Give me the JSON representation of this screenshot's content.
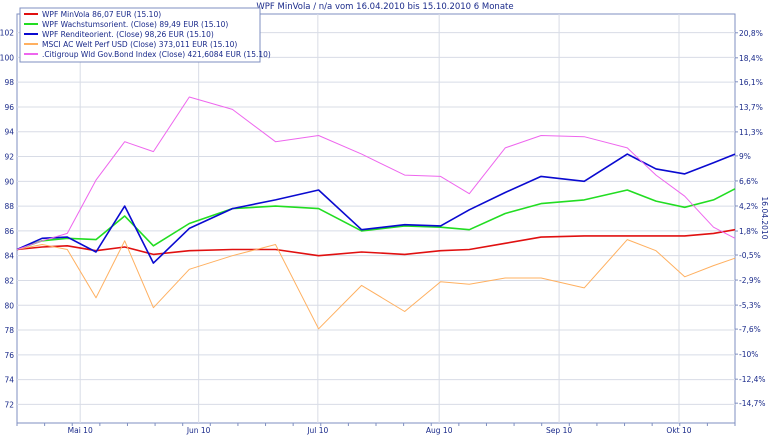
{
  "chart_data": {
    "type": "line",
    "title": "WPF MinVola / n/a vom 16.04.2010 bis 15.10.2010 6 Monate",
    "right_axis_title": "16.04.2010",
    "x_ticks": [
      {
        "label": "Mai 10",
        "t": 0.088
      },
      {
        "label": "Jun 10",
        "t": 0.253
      },
      {
        "label": "Jul 10",
        "t": 0.419
      },
      {
        "label": "Aug 10",
        "t": 0.588
      },
      {
        "label": "Sep 10",
        "t": 0.755
      },
      {
        "label": "Okt 10",
        "t": 0.922
      }
    ],
    "ylim_left": [
      70.5,
      103.5
    ],
    "ylim_right": [
      -16.6,
      22.6
    ],
    "y_left_ticks": [
      72,
      74,
      76,
      78,
      80,
      82,
      84,
      86,
      88,
      90,
      92,
      94,
      96,
      98,
      100,
      102
    ],
    "y_right_ticks": [
      {
        "label": "-14,7%",
        "v": -14.7
      },
      {
        "label": "-12,4%",
        "v": -12.4
      },
      {
        "label": "-10%",
        "v": -10.0
      },
      {
        "label": "-7,6%",
        "v": -7.6
      },
      {
        "label": "-5,3%",
        "v": -5.3
      },
      {
        "label": "-2,9%",
        "v": -2.9
      },
      {
        "label": "-0,5%",
        "v": -0.5
      },
      {
        "label": "1,8%",
        "v": 1.8
      },
      {
        "label": "4,2%",
        "v": 4.2
      },
      {
        "label": "6,6%",
        "v": 6.6
      },
      {
        "label": "9%",
        "v": 9.0
      },
      {
        "label": "11,3%",
        "v": 11.3
      },
      {
        "label": "13,7%",
        "v": 13.7
      },
      {
        "label": "16,1%",
        "v": 16.1
      },
      {
        "label": "18,4%",
        "v": 18.4
      },
      {
        "label": "20,8%",
        "v": 20.8
      }
    ],
    "grid": true,
    "legend_position": "top-left",
    "series": [
      {
        "name": "WPF MinVola 86,07 EUR (15.10)",
        "color": "#e01010",
        "x": [
          0,
          0.035,
          0.07,
          0.11,
          0.15,
          0.19,
          0.24,
          0.3,
          0.36,
          0.42,
          0.48,
          0.54,
          0.59,
          0.63,
          0.68,
          0.73,
          0.79,
          0.85,
          0.89,
          0.93,
          0.97,
          1.0
        ],
        "values": [
          84.5,
          84.7,
          84.8,
          84.4,
          84.7,
          84.1,
          84.4,
          84.5,
          84.5,
          84.0,
          84.3,
          84.1,
          84.4,
          84.5,
          85.0,
          85.5,
          85.6,
          85.6,
          85.6,
          85.6,
          85.8,
          86.1
        ]
      },
      {
        "name": "WPF Wachstumsorient. (Close) 89,49 EUR (15.10)",
        "color": "#22dd22",
        "x": [
          0,
          0.035,
          0.07,
          0.11,
          0.15,
          0.19,
          0.24,
          0.3,
          0.36,
          0.42,
          0.48,
          0.54,
          0.59,
          0.63,
          0.68,
          0.73,
          0.79,
          0.85,
          0.89,
          0.93,
          0.97,
          1.0
        ],
        "values": [
          84.5,
          85.2,
          85.4,
          85.3,
          87.2,
          84.8,
          86.6,
          87.8,
          88.0,
          87.8,
          86.0,
          86.4,
          86.3,
          86.1,
          87.4,
          88.2,
          88.5,
          89.3,
          88.4,
          87.9,
          88.5,
          89.4
        ]
      },
      {
        "name": "WPF Renditeorient. (Close) 98,26 EUR (15.10)",
        "color": "#0a0ad0",
        "x": [
          0,
          0.035,
          0.07,
          0.11,
          0.15,
          0.19,
          0.24,
          0.3,
          0.36,
          0.42,
          0.48,
          0.54,
          0.59,
          0.63,
          0.68,
          0.73,
          0.79,
          0.85,
          0.89,
          0.93,
          0.97,
          1.0
        ],
        "values": [
          84.5,
          85.4,
          85.5,
          84.3,
          88.0,
          83.4,
          86.2,
          87.8,
          88.5,
          89.3,
          86.1,
          86.5,
          86.4,
          87.7,
          89.1,
          90.4,
          90.0,
          92.2,
          91.0,
          90.6,
          91.5,
          92.2
        ]
      },
      {
        "name": "MSCI AC Welt Perf USD (Close) 373,011 EUR (15.10)",
        "color": "#ffb060",
        "x": [
          0,
          0.035,
          0.07,
          0.11,
          0.15,
          0.19,
          0.24,
          0.3,
          0.36,
          0.42,
          0.48,
          0.54,
          0.59,
          0.63,
          0.68,
          0.73,
          0.79,
          0.85,
          0.89,
          0.93,
          0.97,
          1.0
        ],
        "values": [
          84.5,
          84.9,
          84.5,
          80.6,
          85.2,
          79.8,
          82.9,
          84.0,
          84.9,
          78.1,
          81.6,
          79.5,
          81.9,
          81.7,
          82.2,
          82.2,
          81.4,
          85.3,
          84.4,
          82.3,
          83.2,
          83.8
        ]
      },
      {
        "name": ".Citigroup Wld Gov.Bond Index (Close) 421,6084 EUR (15.10)",
        "color": "#ee66ee",
        "x": [
          0,
          0.035,
          0.07,
          0.11,
          0.15,
          0.19,
          0.24,
          0.3,
          0.36,
          0.42,
          0.48,
          0.54,
          0.59,
          0.63,
          0.68,
          0.73,
          0.79,
          0.85,
          0.89,
          0.93,
          0.97,
          1.0
        ],
        "values": [
          84.5,
          85.2,
          85.8,
          90.1,
          93.2,
          92.4,
          96.8,
          95.8,
          93.2,
          93.7,
          92.2,
          90.5,
          90.4,
          89.0,
          92.7,
          93.7,
          93.6,
          92.7,
          90.5,
          88.8,
          86.3,
          85.4
        ]
      }
    ]
  }
}
